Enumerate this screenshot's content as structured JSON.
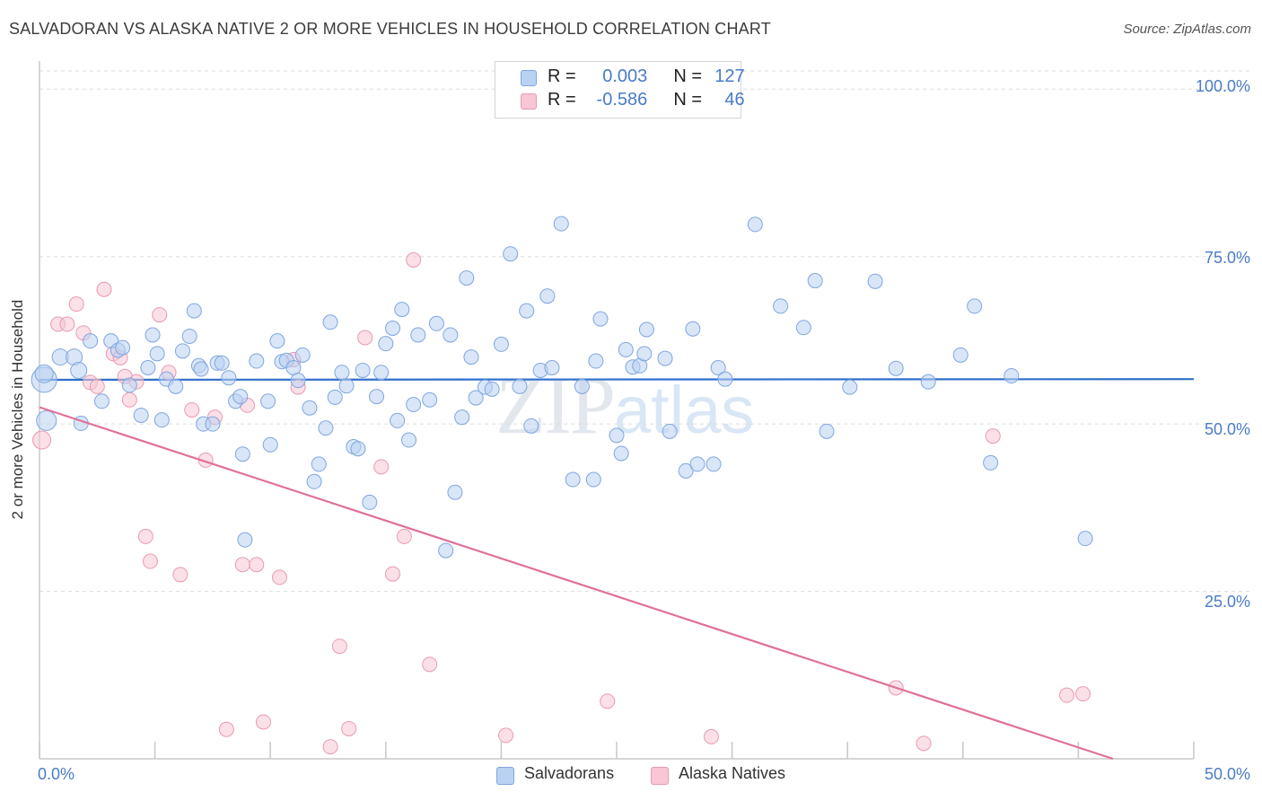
{
  "title": "SALVADORAN VS ALASKA NATIVE 2 OR MORE VEHICLES IN HOUSEHOLD CORRELATION CHART",
  "source": "Source: ZipAtlas.com",
  "colors": {
    "blue_fill": "#b9d2f3",
    "blue_stroke": "#7fa6df",
    "blue_line": "#2f6fcc",
    "pink_fill": "#f8c6d4",
    "pink_stroke": "#e99ab3",
    "pink_line": "#e0709a",
    "tick_text": "#4a7bc8"
  },
  "watermark": {
    "zip": "ZIP",
    "atlas": "atlas"
  },
  "legend_box": {
    "rows": [
      {
        "r_label": "R =",
        "r_value": "0.003",
        "n_label": "N =",
        "n_value": "127"
      },
      {
        "r_label": "R =",
        "r_value": "-0.586",
        "n_label": "N =",
        "n_value": "46"
      }
    ]
  },
  "bottom_legend": {
    "blue_label": "Salvadorans",
    "pink_label": "Alaska Natives"
  },
  "chart_data": {
    "type": "scatter",
    "title": "SALVADORAN VS ALASKA NATIVE 2 OR MORE VEHICLES IN HOUSEHOLD CORRELATION CHART",
    "xlabel": "",
    "ylabel": "2 or more Vehicles in Household",
    "xlim": [
      0,
      50
    ],
    "ylim": [
      0,
      105
    ],
    "x_tick_labels": [
      "0.0%",
      "50.0%"
    ],
    "y_ticks": [
      25,
      50,
      75,
      100
    ],
    "y_tick_labels": [
      "25.0%",
      "50.0%",
      "75.0%",
      "100.0%"
    ],
    "grid": true,
    "series": [
      {
        "name": "Salvadorans",
        "r": 0.003,
        "n": 127,
        "trend": {
          "x": [
            0,
            50
          ],
          "y": [
            56.6,
            56.7
          ]
        },
        "points": [
          [
            0.2,
            56.6,
            14
          ],
          [
            0.3,
            50.5,
            11
          ],
          [
            0.2,
            57.5,
            10
          ],
          [
            0.9,
            60.0,
            9
          ],
          [
            1.5,
            60.0,
            9
          ],
          [
            1.7,
            58.0,
            9
          ],
          [
            1.8,
            50.1,
            8
          ],
          [
            2.2,
            62.4,
            8
          ],
          [
            2.7,
            53.4,
            8
          ],
          [
            3.1,
            62.4,
            8
          ],
          [
            3.4,
            61.0,
            8
          ],
          [
            3.6,
            61.4,
            8
          ],
          [
            3.9,
            55.8,
            8
          ],
          [
            4.4,
            51.3,
            8
          ],
          [
            4.7,
            58.4,
            8
          ],
          [
            4.9,
            63.3,
            8
          ],
          [
            5.1,
            60.5,
            8
          ],
          [
            5.3,
            50.6,
            8
          ],
          [
            5.5,
            56.7,
            8
          ],
          [
            5.9,
            55.6,
            8
          ],
          [
            6.2,
            60.9,
            8
          ],
          [
            6.5,
            63.1,
            8
          ],
          [
            6.7,
            66.9,
            8
          ],
          [
            6.9,
            58.7,
            8
          ],
          [
            7.0,
            58.2,
            8
          ],
          [
            7.1,
            50.0,
            8
          ],
          [
            7.5,
            50.0,
            8
          ],
          [
            7.7,
            59.1,
            8
          ],
          [
            7.9,
            59.1,
            8
          ],
          [
            8.2,
            56.9,
            8
          ],
          [
            8.5,
            53.4,
            8
          ],
          [
            8.7,
            54.1,
            8
          ],
          [
            8.8,
            45.5,
            8
          ],
          [
            8.9,
            32.7,
            8
          ],
          [
            9.4,
            59.4,
            8
          ],
          [
            9.9,
            53.4,
            8
          ],
          [
            10.0,
            46.9,
            8
          ],
          [
            10.3,
            62.4,
            8
          ],
          [
            10.5,
            59.3,
            8
          ],
          [
            10.7,
            59.5,
            8
          ],
          [
            11.0,
            58.4,
            8
          ],
          [
            11.2,
            56.5,
            8
          ],
          [
            11.4,
            60.3,
            8
          ],
          [
            11.7,
            52.4,
            8
          ],
          [
            11.9,
            41.4,
            8
          ],
          [
            12.1,
            44.0,
            8
          ],
          [
            12.4,
            49.4,
            8
          ],
          [
            12.6,
            65.2,
            8
          ],
          [
            12.8,
            54.0,
            8
          ],
          [
            13.1,
            57.7,
            8
          ],
          [
            13.3,
            55.7,
            8
          ],
          [
            13.6,
            46.6,
            8
          ],
          [
            13.8,
            46.3,
            8
          ],
          [
            14.0,
            58.0,
            8
          ],
          [
            14.3,
            38.3,
            8
          ],
          [
            14.6,
            54.1,
            8
          ],
          [
            14.8,
            57.7,
            8
          ],
          [
            15.0,
            62.0,
            8
          ],
          [
            15.3,
            64.3,
            8
          ],
          [
            15.5,
            50.5,
            8
          ],
          [
            15.7,
            67.1,
            8
          ],
          [
            16.0,
            47.6,
            8
          ],
          [
            16.2,
            52.9,
            8
          ],
          [
            16.4,
            63.3,
            8
          ],
          [
            16.9,
            53.6,
            8
          ],
          [
            17.2,
            65.0,
            8
          ],
          [
            17.6,
            31.1,
            8
          ],
          [
            17.8,
            63.3,
            8
          ],
          [
            18.0,
            39.8,
            8
          ],
          [
            18.3,
            51.0,
            8
          ],
          [
            18.5,
            71.8,
            8
          ],
          [
            18.7,
            60.0,
            8
          ],
          [
            18.9,
            53.9,
            8
          ],
          [
            19.3,
            55.5,
            8
          ],
          [
            19.6,
            55.2,
            8
          ],
          [
            20.0,
            61.9,
            8
          ],
          [
            20.4,
            75.4,
            8
          ],
          [
            20.8,
            55.6,
            8
          ],
          [
            21.1,
            66.9,
            8
          ],
          [
            21.3,
            49.7,
            8
          ],
          [
            21.7,
            58.0,
            8
          ],
          [
            22.0,
            69.1,
            8
          ],
          [
            22.2,
            58.4,
            8
          ],
          [
            22.6,
            79.9,
            8
          ],
          [
            23.1,
            41.7,
            8
          ],
          [
            23.5,
            55.6,
            8
          ],
          [
            24.0,
            41.7,
            8
          ],
          [
            24.1,
            59.4,
            8
          ],
          [
            24.3,
            65.7,
            8
          ],
          [
            25.0,
            48.3,
            8
          ],
          [
            25.2,
            45.6,
            8
          ],
          [
            25.4,
            61.1,
            8
          ],
          [
            25.7,
            58.5,
            8
          ],
          [
            26.0,
            58.7,
            8
          ],
          [
            26.2,
            60.5,
            8
          ],
          [
            26.3,
            64.1,
            8
          ],
          [
            27.1,
            59.8,
            8
          ],
          [
            27.3,
            48.9,
            8
          ],
          [
            28.0,
            43.0,
            8
          ],
          [
            28.3,
            64.2,
            8
          ],
          [
            28.5,
            44.0,
            8
          ],
          [
            29.2,
            44.0,
            8
          ],
          [
            29.4,
            58.4,
            8
          ],
          [
            29.7,
            56.7,
            8
          ],
          [
            31.0,
            79.8,
            8
          ],
          [
            32.1,
            67.6,
            8
          ],
          [
            33.1,
            64.4,
            8
          ],
          [
            33.6,
            71.4,
            8
          ],
          [
            34.1,
            48.9,
            8
          ],
          [
            35.1,
            55.5,
            8
          ],
          [
            36.2,
            71.3,
            8
          ],
          [
            37.1,
            58.3,
            8
          ],
          [
            38.5,
            56.3,
            8
          ],
          [
            39.9,
            60.3,
            8
          ],
          [
            40.5,
            67.6,
            8
          ],
          [
            41.2,
            44.2,
            8
          ],
          [
            42.1,
            57.2,
            8
          ],
          [
            45.3,
            32.9,
            8
          ]
        ]
      },
      {
        "name": "Alaska Natives",
        "r": -0.586,
        "n": 46,
        "trend": {
          "x": [
            0,
            46.5
          ],
          "y": [
            52.5,
            0
          ]
        },
        "points": [
          [
            0.1,
            47.6,
            10
          ],
          [
            0.8,
            64.9,
            8
          ],
          [
            1.2,
            64.9,
            8
          ],
          [
            1.6,
            67.9,
            8
          ],
          [
            1.9,
            63.6,
            8
          ],
          [
            2.2,
            56.2,
            8
          ],
          [
            2.5,
            55.6,
            8
          ],
          [
            2.8,
            70.1,
            8
          ],
          [
            3.2,
            60.5,
            8
          ],
          [
            3.5,
            59.9,
            8
          ],
          [
            3.7,
            57.1,
            8
          ],
          [
            3.9,
            53.6,
            8
          ],
          [
            4.2,
            56.3,
            8
          ],
          [
            4.6,
            33.2,
            8
          ],
          [
            4.8,
            29.5,
            8
          ],
          [
            5.2,
            66.3,
            8
          ],
          [
            5.6,
            57.7,
            8
          ],
          [
            6.1,
            27.5,
            8
          ],
          [
            6.6,
            52.1,
            8
          ],
          [
            7.2,
            44.6,
            8
          ],
          [
            7.6,
            51.0,
            8
          ],
          [
            8.1,
            4.4,
            8
          ],
          [
            8.8,
            29.0,
            8
          ],
          [
            9.0,
            52.8,
            8
          ],
          [
            9.4,
            29.0,
            8
          ],
          [
            9.7,
            5.5,
            8
          ],
          [
            10.4,
            27.1,
            8
          ],
          [
            11.0,
            59.6,
            8
          ],
          [
            11.2,
            55.5,
            8
          ],
          [
            12.6,
            1.8,
            8
          ],
          [
            13.0,
            16.8,
            8
          ],
          [
            13.4,
            4.5,
            8
          ],
          [
            14.1,
            62.9,
            8
          ],
          [
            14.8,
            43.6,
            8
          ],
          [
            15.3,
            27.6,
            8
          ],
          [
            15.8,
            33.2,
            8
          ],
          [
            16.2,
            74.5,
            8
          ],
          [
            16.9,
            14.1,
            8
          ],
          [
            20.2,
            3.5,
            8
          ],
          [
            24.6,
            8.6,
            8
          ],
          [
            29.1,
            3.3,
            8
          ],
          [
            37.1,
            10.6,
            8
          ],
          [
            38.3,
            2.3,
            8
          ],
          [
            41.3,
            48.2,
            8
          ],
          [
            44.5,
            9.5,
            8
          ],
          [
            45.2,
            9.7,
            8
          ]
        ]
      }
    ]
  }
}
